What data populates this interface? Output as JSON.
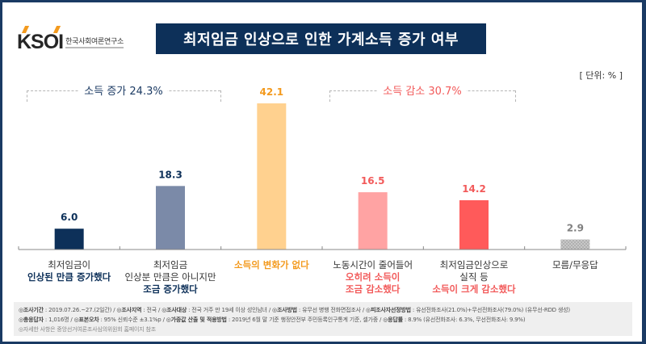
{
  "logo": {
    "mark": "KSOI",
    "org_name": "한국사회여론연구소"
  },
  "title": "최저임금 인상으로 인한 가계소득 증가 여부",
  "unit_label": "[ 단위: % ]",
  "groups": [
    {
      "label": "소득 증가 24.3%",
      "color": "#1b3a63"
    },
    {
      "label": "소득 감소 30.7%",
      "color": "#f25a5a"
    }
  ],
  "chart_data": {
    "type": "bar",
    "title": "최저임금 인상으로 인한 가계소득 증가 여부",
    "xlabel": "",
    "ylabel": "",
    "unit": "%",
    "ylim": [
      0,
      45
    ],
    "grid": false,
    "categories": [
      {
        "line1": "최저임금이",
        "line2": "",
        "bold": "인상된 만큼 증가했다"
      },
      {
        "line1": "최저임금",
        "line2": "인상분 만큼은 아니지만",
        "bold": "조금 증가했다"
      },
      {
        "line1": "",
        "line2": "",
        "bold": "소득의 변화가 없다"
      },
      {
        "line1": "노동시간이 줄어들어",
        "line2": "",
        "bold": "오히려 소득이 조금 감소했다"
      },
      {
        "line1": "최저임금인상으로",
        "line2": "실직 등",
        "bold": "소득이 크게 감소했다"
      },
      {
        "line1": "모름/무응답",
        "line2": "",
        "bold": ""
      }
    ],
    "category_names": [
      "최저임금이 인상된 만큼 증가했다",
      "최저임금 인상분 만큼은 아니지만 조금 증가했다",
      "소득의 변화가 없다",
      "노동시간이 줄어들어 오히려 소득이 조금 감소했다",
      "최저임금인상으로 실직 등 소득이 크게 감소했다",
      "모름/무응답"
    ],
    "values": [
      6.0,
      18.3,
      42.1,
      16.5,
      14.2,
      2.9
    ],
    "value_labels": [
      "6.0",
      "18.3",
      "42.1",
      "16.5",
      "14.2",
      "2.9"
    ],
    "bar_colors": [
      "#0d3059",
      "#7b8aa8",
      "#ffd18f",
      "#ffa3a3",
      "#ff5a5a",
      "#c4c4c4"
    ],
    "label_colors": [
      "#0d3059",
      "#0d3059",
      "#f39a1e",
      "#f25a5a",
      "#f25a5a",
      "#808080"
    ],
    "bold_colors": [
      "#0d3059",
      "#0d3059",
      "#f39a1e",
      "#f25a5a",
      "#f25a5a",
      "#333333"
    ],
    "group_totals": {
      "소득 증가": 24.3,
      "소득 감소": 30.7
    }
  },
  "footer": {
    "row1": [
      {
        "key": "조사기간",
        "value": "2019.07.26.~27.(2일간)"
      },
      {
        "key": "조사지역",
        "value": "전국"
      },
      {
        "key": "조사대상",
        "value": "전국 거주 만 19세 이상 성인남녀"
      },
      {
        "key": "조사방법",
        "value": "유무선 병행 전화면접조사"
      },
      {
        "key": "피조사자선정방법",
        "value": "유선전화조사(21.0%)+무선전화조사(79.0%) (유무선-RDD 생성)"
      }
    ],
    "row2": [
      {
        "key": "총응답자",
        "value": "1,016명"
      },
      {
        "key": "표본오차",
        "value": "95% 신뢰수준 ±3.1%p"
      },
      {
        "key": "가중값 산출 및 적용방법",
        "value": "2019년 6월 말 기준 행정안전부 주민등록인구통계 기준, 셀가중"
      },
      {
        "key": "응답률",
        "value": "8.9% (유선전화조사: 6.3%, 무선전화조사: 9.9%)"
      }
    ],
    "note": "자세한 사항은 중앙선거여론조사심의위원회 홈페이지 참조"
  }
}
